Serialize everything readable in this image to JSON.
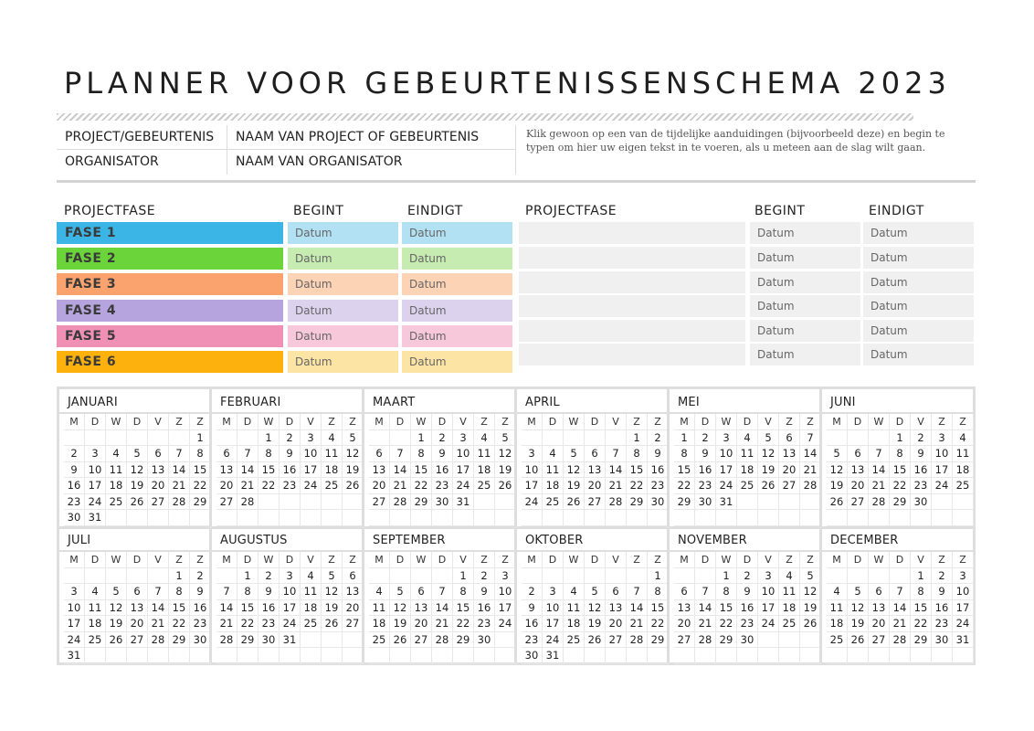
{
  "title": "PLANNER VOOR GEBEURTENISSENSCHEMA 2023",
  "info": {
    "project_label": "PROJECT/GEBEURTENIS",
    "project_value": "NAAM VAN PROJECT OF GEBEURTENIS",
    "organizer_label": "ORGANISATOR",
    "organizer_value": "NAAM VAN ORGANISATOR",
    "tip": "Klik gewoon op een van de tijdelijke aanduidingen (bijvoorbeeld deze) en begin te typen om hier uw eigen tekst in te voeren, als u meteen aan de slag wilt gaan."
  },
  "headers": {
    "phase": "PROJECTFASE",
    "start": "BEGINT",
    "end": "EINDIGT"
  },
  "phases": [
    {
      "name": "FASE 1",
      "start": "Datum",
      "end": "Datum",
      "color": "#3bb4e6",
      "light": "#b3e1f4"
    },
    {
      "name": "FASE 2",
      "start": "Datum",
      "end": "Datum",
      "color": "#6cd43b",
      "light": "#c6ecb1"
    },
    {
      "name": "FASE 3",
      "start": "Datum",
      "end": "Datum",
      "color": "#fba36e",
      "light": "#fdd3b6"
    },
    {
      "name": "FASE 4",
      "start": "Datum",
      "end": "Datum",
      "color": "#b5a4dd",
      "light": "#dcd2ee"
    },
    {
      "name": "FASE 5",
      "start": "Datum",
      "end": "Datum",
      "color": "#ef90b4",
      "light": "#f7c7da"
    },
    {
      "name": "FASE 6",
      "start": "Datum",
      "end": "Datum",
      "color": "#fdb10c",
      "light": "#fce5a4"
    }
  ],
  "phases_right": [
    {
      "name": "",
      "start": "Datum",
      "end": "Datum"
    },
    {
      "name": "",
      "start": "Datum",
      "end": "Datum"
    },
    {
      "name": "",
      "start": "Datum",
      "end": "Datum"
    },
    {
      "name": "",
      "start": "Datum",
      "end": "Datum"
    },
    {
      "name": "",
      "start": "Datum",
      "end": "Datum"
    },
    {
      "name": "",
      "start": "Datum",
      "end": "Datum"
    }
  ],
  "day_headers": [
    "M",
    "D",
    "W",
    "D",
    "V",
    "Z",
    "Z"
  ],
  "months": [
    {
      "name": "JANUARI",
      "offset": 6,
      "days": 31
    },
    {
      "name": "FEBRUARI",
      "offset": 2,
      "days": 28
    },
    {
      "name": "MAART",
      "offset": 2,
      "days": 31
    },
    {
      "name": "APRIL",
      "offset": 5,
      "days": 30
    },
    {
      "name": "MEI",
      "offset": 0,
      "days": 31
    },
    {
      "name": "JUNI",
      "offset": 3,
      "days": 30
    },
    {
      "name": "JULI",
      "offset": 5,
      "days": 31
    },
    {
      "name": "AUGUSTUS",
      "offset": 1,
      "days": 31
    },
    {
      "name": "SEPTEMBER",
      "offset": 4,
      "days": 30
    },
    {
      "name": "OKTOBER",
      "offset": 6,
      "days": 31
    },
    {
      "name": "NOVEMBER",
      "offset": 2,
      "days": 30
    },
    {
      "name": "DECEMBER",
      "offset": 4,
      "days": 31
    }
  ]
}
